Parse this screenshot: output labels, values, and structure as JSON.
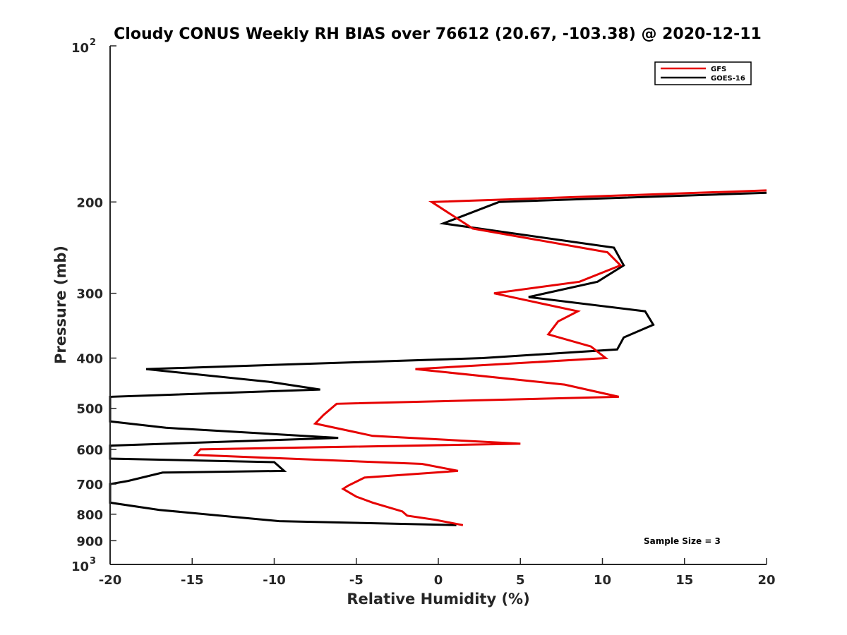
{
  "chart_data": {
    "type": "line",
    "title": "Cloudy CONUS Weekly RH BIAS over 76612 (20.67, -103.38) @ 2020-12-11",
    "xlabel": "Relative Humidity (%)",
    "ylabel": "Pressure (mb)",
    "xlim": [
      -20,
      20
    ],
    "ylim": [
      100,
      1000
    ],
    "yscale": "log",
    "y_reversed": true,
    "grid": false,
    "legend_position": "top-right",
    "x_ticks": [
      -20,
      -15,
      -10,
      -5,
      0,
      5,
      10,
      15,
      20
    ],
    "x_tick_labels": [
      "-20",
      "-15",
      "-10",
      "-5",
      "0",
      "5",
      "10",
      "15",
      "20"
    ],
    "y_ticks": [
      200,
      300,
      400,
      500,
      600,
      700,
      800,
      900
    ],
    "y_tick_labels": [
      "200",
      "300",
      "400",
      "500",
      "600",
      "700",
      "800",
      "900"
    ],
    "y_decade_ticks": [
      {
        "value": 100,
        "base": "10",
        "exp": "2"
      },
      {
        "value": 1000,
        "base": "10",
        "exp": "3"
      }
    ],
    "series": [
      {
        "name": "GFS",
        "color": "#e60000",
        "points": [
          {
            "x": 20.0,
            "y": 190
          },
          {
            "x": -0.4,
            "y": 200
          },
          {
            "x": 2.1,
            "y": 225
          },
          {
            "x": 10.3,
            "y": 250
          },
          {
            "x": 11.1,
            "y": 265
          },
          {
            "x": 8.6,
            "y": 285
          },
          {
            "x": 3.4,
            "y": 300
          },
          {
            "x": 8.5,
            "y": 325
          },
          {
            "x": 7.3,
            "y": 340
          },
          {
            "x": 6.7,
            "y": 360
          },
          {
            "x": 9.3,
            "y": 380
          },
          {
            "x": 10.2,
            "y": 400
          },
          {
            "x": -1.4,
            "y": 420
          },
          {
            "x": 7.7,
            "y": 450
          },
          {
            "x": 11.0,
            "y": 475
          },
          {
            "x": -6.2,
            "y": 490
          },
          {
            "x": -7.0,
            "y": 515
          },
          {
            "x": -7.5,
            "y": 535
          },
          {
            "x": -4.0,
            "y": 565
          },
          {
            "x": 5.0,
            "y": 585
          },
          {
            "x": -14.5,
            "y": 600
          },
          {
            "x": -14.8,
            "y": 615
          },
          {
            "x": -1.0,
            "y": 640
          },
          {
            "x": 1.2,
            "y": 660
          },
          {
            "x": -4.5,
            "y": 680
          },
          {
            "x": -5.5,
            "y": 705
          },
          {
            "x": -5.8,
            "y": 715
          },
          {
            "x": -5.0,
            "y": 740
          },
          {
            "x": -4.0,
            "y": 760
          },
          {
            "x": -2.2,
            "y": 790
          },
          {
            "x": -1.9,
            "y": 805
          },
          {
            "x": -0.2,
            "y": 820
          },
          {
            "x": 1.5,
            "y": 840
          }
        ]
      },
      {
        "name": "GOES-16",
        "color": "#000000",
        "points": [
          {
            "x": 20.0,
            "y": 192
          },
          {
            "x": 3.7,
            "y": 200
          },
          {
            "x": 0.3,
            "y": 220
          },
          {
            "x": 10.7,
            "y": 245
          },
          {
            "x": 11.3,
            "y": 265
          },
          {
            "x": 9.7,
            "y": 285
          },
          {
            "x": 5.5,
            "y": 305
          },
          {
            "x": 12.6,
            "y": 325
          },
          {
            "x": 13.1,
            "y": 345
          },
          {
            "x": 11.3,
            "y": 365
          },
          {
            "x": 10.9,
            "y": 385
          },
          {
            "x": 2.7,
            "y": 400
          },
          {
            "x": -17.8,
            "y": 420
          },
          {
            "x": -10.2,
            "y": 445
          },
          {
            "x": -7.2,
            "y": 460
          },
          {
            "x": -20.0,
            "y": 475
          },
          {
            "x": -20.0,
            "y": 530
          },
          {
            "x": -16.6,
            "y": 545
          },
          {
            "x": -6.1,
            "y": 570
          },
          {
            "x": -20.0,
            "y": 590
          },
          {
            "x": -20.0,
            "y": 625
          },
          {
            "x": -10.0,
            "y": 635
          },
          {
            "x": -9.4,
            "y": 660
          },
          {
            "x": -16.8,
            "y": 665
          },
          {
            "x": -18.9,
            "y": 690
          },
          {
            "x": -20.0,
            "y": 700
          },
          {
            "x": -20.0,
            "y": 760
          },
          {
            "x": -17.0,
            "y": 785
          },
          {
            "x": -9.7,
            "y": 825
          },
          {
            "x": 1.1,
            "y": 840
          }
        ]
      }
    ],
    "annotations": [
      {
        "text": "Sample Size = 3",
        "x": 12.5,
        "y": 910
      }
    ]
  }
}
